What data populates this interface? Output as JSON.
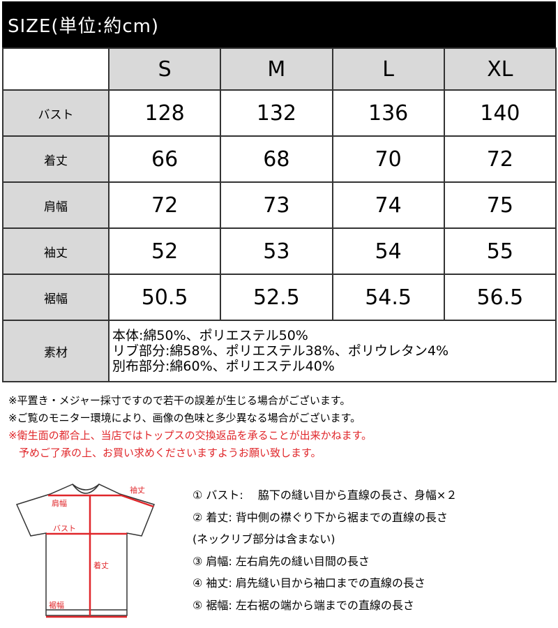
{
  "title": "SIZE(単位:約cm)",
  "table": {
    "sizes": [
      "S",
      "M",
      "L",
      "XL"
    ],
    "rows": [
      {
        "label": "バスト",
        "values": [
          "128",
          "132",
          "136",
          "140"
        ]
      },
      {
        "label": "着丈",
        "values": [
          "66",
          "68",
          "70",
          "72"
        ]
      },
      {
        "label": "肩幅",
        "values": [
          "72",
          "73",
          "74",
          "75"
        ]
      },
      {
        "label": "袖丈",
        "values": [
          "52",
          "53",
          "54",
          "55"
        ]
      },
      {
        "label": "裾幅",
        "values": [
          "50.5",
          "52.5",
          "54.5",
          "56.5"
        ]
      }
    ],
    "material_label": "素材",
    "material": [
      "本体:綿50%、ポリエステル50%",
      "リブ部分:綿58%、ポリエステル38%、ポリウレタン4%",
      "別布部分:綿60%、ポリエステル40%"
    ]
  },
  "notes": [
    "※平置き・メジャー採寸ですので若干の誤差が生じる場合がございます。",
    "※ご覧のモニター環境により、画像の色味と多少異なる場合がございます。"
  ],
  "red_notes": [
    "※衛生面の都合上、当店ではトップスの交換返品を承ることが出来かねます。",
    "　予めご了承の上、お買い求めくださいますようお願い致します。"
  ],
  "diagram": {
    "labels": {
      "sleeve": "袖丈",
      "shoulder": "肩幅",
      "bust": "バスト",
      "length": "着丈",
      "hem": "裾幅"
    },
    "accent": "#e0262a"
  },
  "descriptions": [
    "① バスト:　 脇下の縫い目から直線の長さ、身幅×２",
    "② 着丈:  背中側の襟ぐり下から裾までの直線の長さ",
    "(ネックリブ部分は含まない)",
    "③ 肩幅:  左右肩先の縫い目間の長さ",
    "④ 袖丈:  肩先縫い目から袖口までの直線の長さ",
    "⑤ 裾幅:  左右裾の端から端までの直線の長さ"
  ]
}
